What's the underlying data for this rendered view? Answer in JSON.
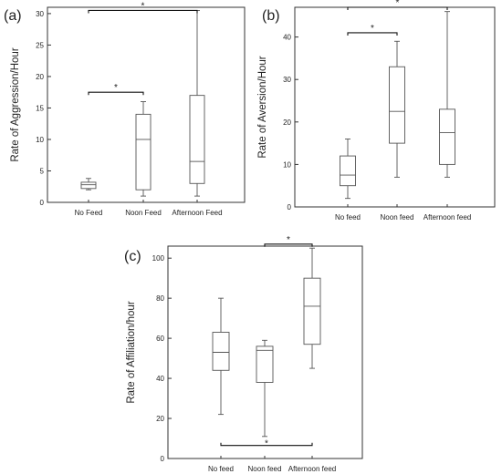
{
  "figure": {
    "background": "#ffffff",
    "box_color": "#555555",
    "bracket_color": "#111111"
  },
  "chart_data": [
    {
      "type": "box",
      "panel_label": "(a)",
      "ylabel": "Rate of Aggression/Hour",
      "ylim": [
        0,
        31
      ],
      "yticks": [
        0,
        5,
        10,
        15,
        20,
        25,
        30
      ],
      "ytick_labels": [
        "0",
        "5",
        "10",
        "15",
        "20",
        "25",
        "30"
      ],
      "categories": [
        "No Feed",
        "Noon Feed",
        "Afternoon Feed"
      ],
      "boxes": [
        {
          "min": 2,
          "q1": 2.2,
          "median": 2.8,
          "q3": 3.2,
          "max": 3.8
        },
        {
          "min": 1,
          "q1": 2,
          "median": 10,
          "q3": 14,
          "max": 16
        },
        {
          "min": 1,
          "q1": 3,
          "median": 6.5,
          "q3": 17,
          "max": 30.5
        }
      ],
      "significance": [
        {
          "from": 0,
          "to": 1,
          "y": 17.5,
          "label": "*"
        },
        {
          "from": 0,
          "to": 2,
          "y": 30.5,
          "label": "*"
        }
      ]
    },
    {
      "type": "box",
      "panel_label": "(b)",
      "ylabel": "Rate of Aversion/Hour",
      "ylim": [
        0,
        47
      ],
      "yticks": [
        0,
        10,
        20,
        30,
        40
      ],
      "ytick_labels": [
        "0",
        "10",
        "20",
        "30",
        "40"
      ],
      "categories": [
        "No  feed",
        "Noon  feed",
        "Afternoon  feed"
      ],
      "boxes": [
        {
          "min": 2,
          "q1": 5,
          "median": 7.5,
          "q3": 12,
          "max": 16
        },
        {
          "min": 7,
          "q1": 15,
          "median": 22.5,
          "q3": 33,
          "max": 39
        },
        {
          "min": 7,
          "q1": 10,
          "median": 17.5,
          "q3": 23,
          "max": 46
        }
      ],
      "significance": [
        {
          "from": 0,
          "to": 1,
          "y": 41,
          "label": "*"
        },
        {
          "from": 0,
          "to": 2,
          "y": 47,
          "label": "*"
        }
      ]
    },
    {
      "type": "box",
      "panel_label": "(c)",
      "ylabel": "Rate of Affiliation/hour",
      "ylim": [
        0,
        106
      ],
      "yticks": [
        0,
        20,
        40,
        60,
        80,
        100
      ],
      "ytick_labels": [
        "0",
        "20",
        "40",
        "60",
        "80",
        "100"
      ],
      "categories": [
        "No  feed",
        "Noon  feed",
        "Afternoon  feed"
      ],
      "boxes": [
        {
          "min": 22,
          "q1": 44,
          "median": 53,
          "q3": 63,
          "max": 80
        },
        {
          "min": 11,
          "q1": 38,
          "median": 54,
          "q3": 56,
          "max": 59
        },
        {
          "min": 45,
          "q1": 57,
          "median": 76,
          "q3": 90,
          "max": 105
        }
      ],
      "significance": [
        {
          "from": 1,
          "to": 2,
          "y": 107,
          "label": "*",
          "tick": "down"
        },
        {
          "from": 0,
          "to": 2,
          "y": 6.5,
          "label": "*",
          "tick": "up"
        }
      ]
    }
  ]
}
